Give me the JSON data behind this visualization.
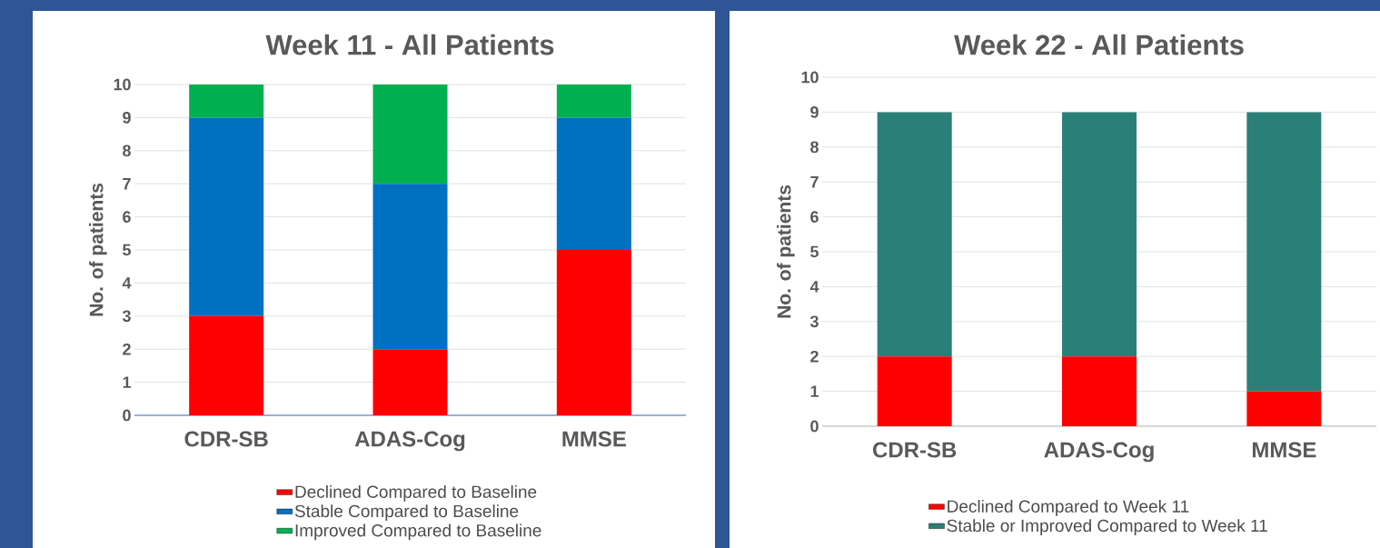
{
  "chart_data": [
    {
      "type": "bar",
      "title": "Week 11 - All Patients",
      "ylabel": "No. of patients",
      "categories": [
        "CDR-SB",
        "ADAS-Cog",
        "MMSE"
      ],
      "stacked": true,
      "ylim": [
        0,
        10
      ],
      "yticks": [
        0,
        1,
        2,
        3,
        4,
        5,
        6,
        7,
        8,
        9,
        10
      ],
      "grid": "y",
      "legend": "bottom",
      "series": [
        {
          "name": "Declined Compared to Baseline",
          "color": "#ff0000",
          "values": [
            3,
            2,
            5
          ]
        },
        {
          "name": "Stable Compared to Baseline",
          "color": "#0070c0",
          "values": [
            6,
            5,
            4
          ]
        },
        {
          "name": "Improved Compared to Baseline",
          "color": "#00b050",
          "values": [
            1,
            3,
            1
          ]
        }
      ]
    },
    {
      "type": "bar",
      "title": "Week 22 - All Patients",
      "ylabel": "No. of patients",
      "categories": [
        "CDR-SB",
        "ADAS-Cog",
        "MMSE"
      ],
      "stacked": true,
      "ylim": [
        0,
        10
      ],
      "yticks": [
        0,
        1,
        2,
        3,
        4,
        5,
        6,
        7,
        8,
        9,
        10
      ],
      "grid": "y",
      "legend": "bottom",
      "series": [
        {
          "name": "Declined Compared to Week 11",
          "color": "#ff0000",
          "values": [
            2,
            2,
            1
          ]
        },
        {
          "name": "Stable or Improved Compared to Week 11",
          "color": "#2a7f78",
          "values": [
            7,
            7,
            8
          ]
        }
      ]
    }
  ]
}
